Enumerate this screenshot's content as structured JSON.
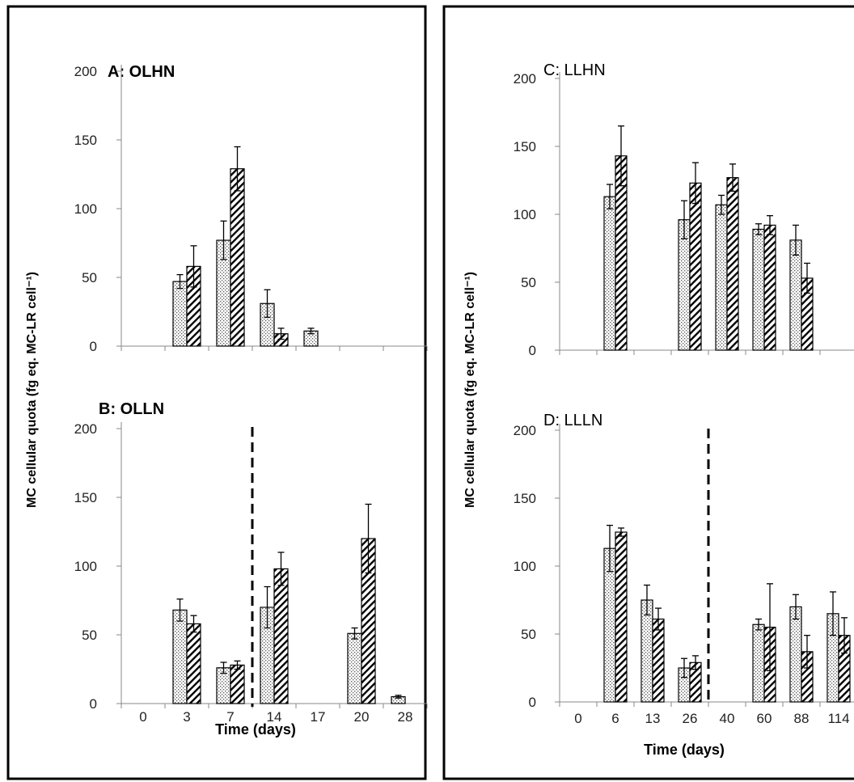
{
  "figure": {
    "y_axis_label_left": "MC cellular quota (fg eq. MC-LR cell⁻¹)",
    "y_axis_label_right": "MC cellular quota (fg eq. MC-LR cell⁻¹)",
    "x_axis_label_left": "Time (days)",
    "x_axis_label_right": "Time (days)"
  },
  "chart_data": [
    {
      "type": "bar",
      "title": "A: OLHN",
      "categories": [
        "0",
        "3",
        "7",
        "14",
        "17",
        "20",
        "28"
      ],
      "ylim": [
        0,
        200
      ],
      "yticks": [
        0,
        50,
        100,
        150,
        200
      ],
      "series": [
        {
          "pattern": "dotted",
          "values": [
            null,
            47,
            77,
            31,
            11,
            null,
            null
          ],
          "errors": [
            null,
            5,
            14,
            10,
            2,
            null,
            null
          ]
        },
        {
          "pattern": "hatched",
          "values": [
            null,
            58,
            129,
            9,
            null,
            null,
            null
          ],
          "errors": [
            null,
            15,
            16,
            4,
            null,
            null,
            null
          ]
        }
      ]
    },
    {
      "type": "bar",
      "title": "B: OLLN",
      "categories": [
        "0",
        "3",
        "7",
        "14",
        "17",
        "20",
        "28"
      ],
      "ylim": [
        0,
        200
      ],
      "yticks": [
        0,
        50,
        100,
        150,
        200
      ],
      "dashed_line_between": [
        "7",
        "14"
      ],
      "series": [
        {
          "pattern": "dotted",
          "values": [
            null,
            68,
            26,
            70,
            null,
            51,
            5
          ],
          "errors": [
            null,
            8,
            4,
            15,
            null,
            4,
            1
          ]
        },
        {
          "pattern": "hatched",
          "values": [
            null,
            58,
            28,
            98,
            null,
            120,
            null
          ],
          "errors": [
            null,
            6,
            3,
            12,
            null,
            25,
            null
          ]
        }
      ]
    },
    {
      "type": "bar",
      "title": "C: LLHN",
      "categories": [
        "0",
        "6",
        "13",
        "26",
        "40",
        "60",
        "88",
        "114"
      ],
      "ylim": [
        0,
        200
      ],
      "yticks": [
        0,
        50,
        100,
        150,
        200
      ],
      "series": [
        {
          "pattern": "dotted",
          "values": [
            null,
            113,
            null,
            96,
            107,
            89,
            81,
            null
          ],
          "errors": [
            null,
            9,
            null,
            14,
            7,
            4,
            11,
            null
          ]
        },
        {
          "pattern": "hatched",
          "values": [
            null,
            143,
            null,
            123,
            127,
            92,
            53,
            null
          ],
          "errors": [
            null,
            22,
            null,
            15,
            10,
            7,
            11,
            null
          ]
        }
      ]
    },
    {
      "type": "bar",
      "title": "D: LLLN",
      "categories": [
        "0",
        "6",
        "13",
        "26",
        "40",
        "60",
        "88",
        "114"
      ],
      "ylim": [
        0,
        200
      ],
      "yticks": [
        0,
        50,
        100,
        150,
        200
      ],
      "dashed_line_between": [
        "26",
        "40"
      ],
      "series": [
        {
          "pattern": "dotted",
          "values": [
            null,
            113,
            75,
            25,
            null,
            57,
            70,
            65
          ],
          "errors": [
            null,
            17,
            11,
            7,
            null,
            4,
            9,
            16
          ]
        },
        {
          "pattern": "hatched",
          "values": [
            null,
            125,
            61,
            29,
            null,
            55,
            37,
            49
          ],
          "errors": [
            null,
            3,
            8,
            5,
            null,
            32,
            12,
            13
          ]
        }
      ]
    }
  ]
}
